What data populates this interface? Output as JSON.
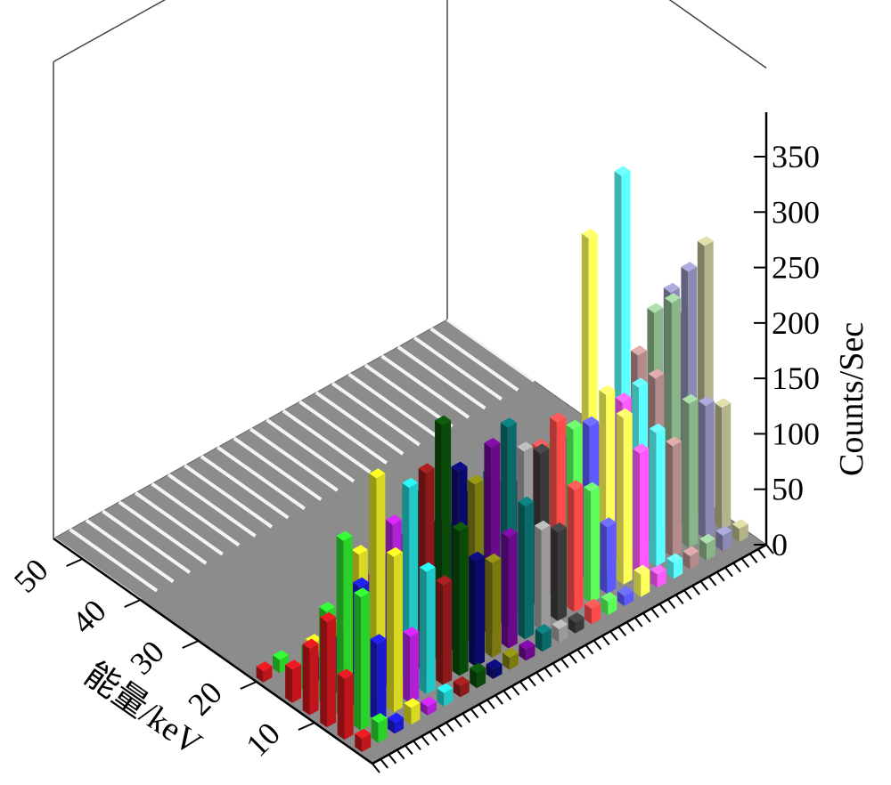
{
  "chart_data": {
    "type": "bar",
    "view": "3d-perspective",
    "xlabel": "能量/keV",
    "ylabel": "",
    "zlabel": "Counts/Sec",
    "x_ticks": [
      "10",
      "20",
      "30",
      "40",
      "50"
    ],
    "z_ticks": [
      "0",
      "50",
      "100",
      "150",
      "200",
      "250",
      "300",
      "350"
    ],
    "xlim": [
      0,
      55
    ],
    "zlim": [
      0,
      350
    ],
    "rows": 24,
    "grid": false,
    "legend": "none",
    "series": [
      {
        "values": [
          {
            "x": 3,
            "v": 12
          },
          {
            "x": 6,
            "v": 55
          },
          {
            "x": 9,
            "v": 95
          },
          {
            "x": 12,
            "v": 60
          },
          {
            "x": 15,
            "v": 30
          },
          {
            "x": 20,
            "v": 10
          }
        ]
      },
      {
        "values": [
          {
            "x": 3,
            "v": 18
          },
          {
            "x": 6,
            "v": 120
          },
          {
            "x": 9,
            "v": 160
          },
          {
            "x": 12,
            "v": 85
          },
          {
            "x": 15,
            "v": 40
          },
          {
            "x": 20,
            "v": 12
          }
        ]
      },
      {
        "values": [
          {
            "x": 3,
            "v": 10
          },
          {
            "x": 6,
            "v": 70
          },
          {
            "x": 9,
            "v": 110
          },
          {
            "x": 12,
            "v": 50
          },
          {
            "x": 15,
            "v": 20
          }
        ]
      },
      {
        "values": [
          {
            "x": 3,
            "v": 15
          },
          {
            "x": 6,
            "v": 140
          },
          {
            "x": 9,
            "v": 200
          },
          {
            "x": 12,
            "v": 120
          },
          {
            "x": 15,
            "v": 45
          },
          {
            "x": 20,
            "v": 10
          }
        ]
      },
      {
        "values": [
          {
            "x": 3,
            "v": 8
          },
          {
            "x": 6,
            "v": 60
          },
          {
            "x": 9,
            "v": 150
          },
          {
            "x": 12,
            "v": 90
          },
          {
            "x": 15,
            "v": 35
          }
        ]
      },
      {
        "values": [
          {
            "x": 3,
            "v": 12
          },
          {
            "x": 6,
            "v": 110
          },
          {
            "x": 9,
            "v": 175
          },
          {
            "x": 12,
            "v": 100
          },
          {
            "x": 15,
            "v": 40
          }
        ]
      },
      {
        "values": [
          {
            "x": 3,
            "v": 10
          },
          {
            "x": 6,
            "v": 90
          },
          {
            "x": 9,
            "v": 180
          },
          {
            "x": 12,
            "v": 110
          },
          {
            "x": 15,
            "v": 38
          }
        ]
      },
      {
        "values": [
          {
            "x": 3,
            "v": 14
          },
          {
            "x": 6,
            "v": 130
          },
          {
            "x": 9,
            "v": 215
          },
          {
            "x": 12,
            "v": 140
          },
          {
            "x": 15,
            "v": 50
          },
          {
            "x": 20,
            "v": 15
          }
        ]
      },
      {
        "values": [
          {
            "x": 3,
            "v": 9
          },
          {
            "x": 6,
            "v": 95
          },
          {
            "x": 9,
            "v": 165
          },
          {
            "x": 12,
            "v": 105
          },
          {
            "x": 15,
            "v": 42
          }
        ]
      },
      {
        "values": [
          {
            "x": 3,
            "v": 11
          },
          {
            "x": 6,
            "v": 85
          },
          {
            "x": 9,
            "v": 145
          },
          {
            "x": 12,
            "v": 95
          },
          {
            "x": 15,
            "v": 35
          }
        ]
      },
      {
        "values": [
          {
            "x": 3,
            "v": 10
          },
          {
            "x": 6,
            "v": 100
          },
          {
            "x": 9,
            "v": 170
          },
          {
            "x": 12,
            "v": 115
          },
          {
            "x": 15,
            "v": 45
          }
        ]
      },
      {
        "values": [
          {
            "x": 3,
            "v": 16
          },
          {
            "x": 6,
            "v": 120
          },
          {
            "x": 9,
            "v": 180
          },
          {
            "x": 12,
            "v": 125
          },
          {
            "x": 15,
            "v": 40
          }
        ]
      },
      {
        "values": [
          {
            "x": 3,
            "v": 12
          },
          {
            "x": 6,
            "v": 90
          },
          {
            "x": 9,
            "v": 150
          },
          {
            "x": 12,
            "v": 110
          },
          {
            "x": 15,
            "v": 38
          }
        ]
      },
      {
        "values": [
          {
            "x": 3,
            "v": 10
          },
          {
            "x": 6,
            "v": 80
          },
          {
            "x": 9,
            "v": 140
          },
          {
            "x": 12,
            "v": 100
          },
          {
            "x": 15,
            "v": 30
          }
        ]
      },
      {
        "values": [
          {
            "x": 3,
            "v": 14
          },
          {
            "x": 6,
            "v": 110
          },
          {
            "x": 9,
            "v": 160
          },
          {
            "x": 12,
            "v": 125
          },
          {
            "x": 15,
            "v": 42
          }
        ]
      },
      {
        "values": [
          {
            "x": 3,
            "v": 12
          },
          {
            "x": 6,
            "v": 100
          },
          {
            "x": 9,
            "v": 145
          },
          {
            "x": 12,
            "v": 120
          },
          {
            "x": 15,
            "v": 35
          }
        ]
      },
      {
        "values": [
          {
            "x": 3,
            "v": 9
          },
          {
            "x": 6,
            "v": 60
          },
          {
            "x": 9,
            "v": 140
          },
          {
            "x": 12,
            "v": 115
          },
          {
            "x": 15,
            "v": 35
          }
        ]
      },
      {
        "values": [
          {
            "x": 3,
            "v": 20
          },
          {
            "x": 6,
            "v": 150
          },
          {
            "x": 9,
            "v": 160
          },
          {
            "x": 12,
            "v": 290
          },
          {
            "x": 15,
            "v": 80
          },
          {
            "x": 20,
            "v": 20
          }
        ]
      },
      {
        "values": [
          {
            "x": 3,
            "v": 12
          },
          {
            "x": 6,
            "v": 110
          },
          {
            "x": 9,
            "v": 145
          },
          {
            "x": 12,
            "v": 110
          },
          {
            "x": 15,
            "v": 40
          }
        ]
      },
      {
        "values": [
          {
            "x": 3,
            "v": 14
          },
          {
            "x": 6,
            "v": 120
          },
          {
            "x": 9,
            "v": 150
          },
          {
            "x": 12,
            "v": 330
          },
          {
            "x": 15,
            "v": 90
          },
          {
            "x": 20,
            "v": 25
          }
        ]
      },
      {
        "values": [
          {
            "x": 3,
            "v": 12
          },
          {
            "x": 6,
            "v": 100
          },
          {
            "x": 9,
            "v": 150
          },
          {
            "x": 12,
            "v": 160
          },
          {
            "x": 15,
            "v": 45
          }
        ]
      },
      {
        "values": [
          {
            "x": 3,
            "v": 15
          },
          {
            "x": 6,
            "v": 130
          },
          {
            "x": 9,
            "v": 210
          },
          {
            "x": 12,
            "v": 190
          },
          {
            "x": 15,
            "v": 55
          }
        ]
      },
      {
        "values": [
          {
            "x": 3,
            "v": 14
          },
          {
            "x": 6,
            "v": 120
          },
          {
            "x": 9,
            "v": 230
          },
          {
            "x": 12,
            "v": 200
          },
          {
            "x": 15,
            "v": 60
          }
        ]
      },
      {
        "values": [
          {
            "x": 3,
            "v": 12
          },
          {
            "x": 6,
            "v": 110
          },
          {
            "x": 9,
            "v": 245
          },
          {
            "x": 12,
            "v": 170
          },
          {
            "x": 15,
            "v": 50
          }
        ]
      }
    ],
    "colors": [
      "#c0151b",
      "#2ad12a",
      "#1a1acc",
      "#d8d820",
      "#b020d8",
      "#22c8c8",
      "#8c1a1a",
      "#0a4a0a",
      "#0a0a6a",
      "#7a7a10",
      "#6a0a8a",
      "#0a6a6a",
      "#9a9a9a",
      "#3a3a3a",
      "#ff4a4a",
      "#5aff5a",
      "#5a5aff",
      "#ffff5a",
      "#ff5aff",
      "#5affff",
      "#b48a8a",
      "#8ab48a",
      "#8a8ab4",
      "#b4b48a"
    ]
  }
}
